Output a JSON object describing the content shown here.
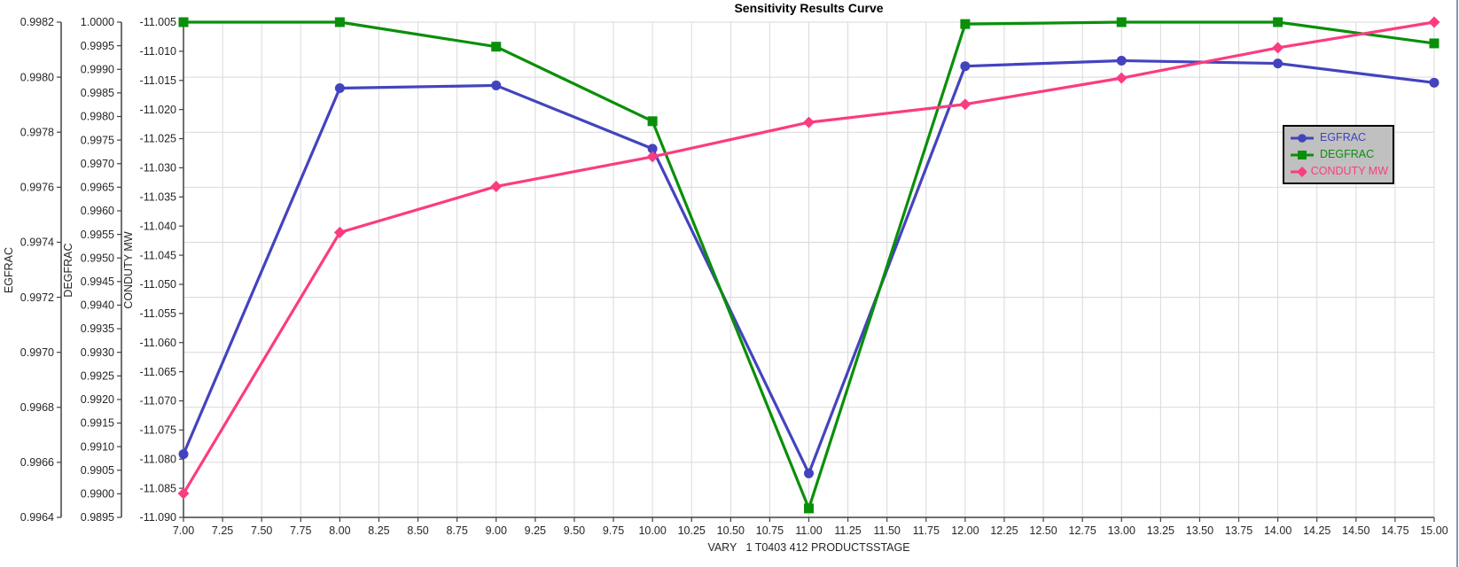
{
  "chart_data": {
    "type": "line",
    "title": "Sensitivity Results Curve",
    "xlabel": "VARY   1 T0403 412 PRODUCTSSTAGE",
    "grid": true,
    "x": [
      7.0,
      8.0,
      9.0,
      10.0,
      11.0,
      12.0,
      13.0,
      14.0,
      15.0
    ],
    "x_axis": {
      "min": 7.0,
      "max": 15.0,
      "tick_step": 0.25,
      "decimals": 2
    },
    "y_axes": [
      {
        "id": "EGFRAC",
        "label": "EGFRAC",
        "min": 0.9964,
        "max": 0.9982,
        "tick_step": 0.0002,
        "decimals": 4
      },
      {
        "id": "DEGFRAC",
        "label": "DEGFRAC",
        "min": 0.9895,
        "max": 1.0,
        "tick_step": 0.0005,
        "decimals": 4
      },
      {
        "id": "CONDUTY",
        "label": "CONDUTY MW",
        "min": -11.09,
        "max": -11.005,
        "tick_step": 0.005,
        "decimals": 3
      }
    ],
    "series": [
      {
        "name": "EGFRAC",
        "axis": "EGFRAC",
        "color": "#4343BF",
        "marker": "circle",
        "values": [
          0.99663,
          0.99796,
          0.99797,
          0.99774,
          0.99656,
          0.99804,
          0.99806,
          0.99805,
          0.99798
        ]
      },
      {
        "name": "DEGFRAC",
        "axis": "DEGFRAC",
        "color": "#0A8F0A",
        "marker": "square",
        "values": [
          1.0,
          1.0,
          0.99948,
          0.9979,
          0.98969,
          0.99996,
          1.0,
          1.0,
          0.99955
        ]
      },
      {
        "name": "CONDUTY MW",
        "axis": "CONDUTY",
        "color": "#FB3C80",
        "marker": "diamond",
        "values": [
          -11.0859,
          -11.0411,
          -11.0332,
          -11.0281,
          -11.0222,
          -11.0191,
          -11.0146,
          -11.0094,
          -11.005
        ]
      }
    ],
    "legend": {
      "entries": [
        "EGFRAC",
        "DEGFRAC",
        "CONDUTY MW"
      ],
      "background": "#C0C0C0",
      "border_color": "#000000",
      "position": "upper-right"
    }
  },
  "colors": {
    "grid": "#D9D9D9",
    "axis": "#404040",
    "tick_text": "#262626",
    "title_text": "#000000",
    "window_border": "#8796A9",
    "background": "#FFFFFF"
  }
}
